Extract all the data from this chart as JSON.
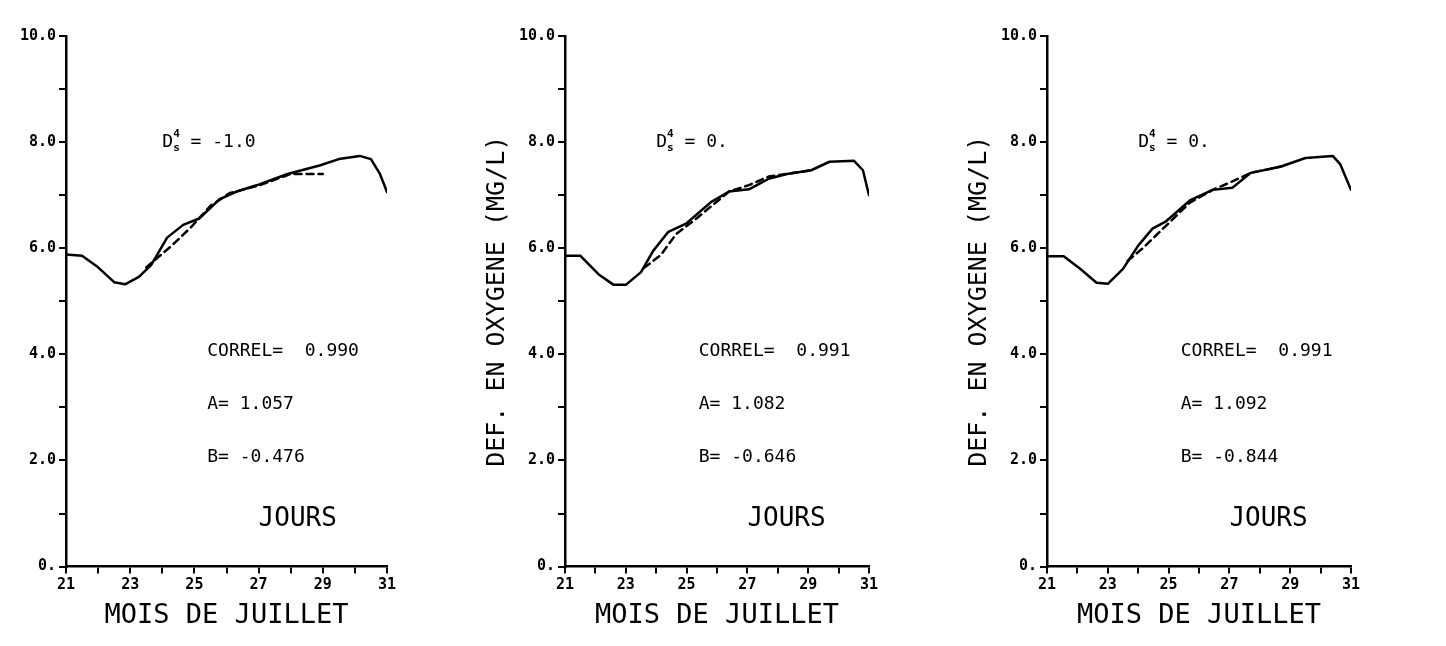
{
  "chart_data": [
    {
      "type": "line",
      "xlabel": "MOIS DE JUILLET",
      "xlim": [
        21,
        31
      ],
      "xticks": [
        21,
        {
          "value": 22,
          "label": null
        },
        23,
        {
          "value": 24,
          "label": null
        },
        25,
        {
          "value": 26,
          "label": null
        },
        27,
        {
          "value": 28,
          "label": null
        },
        29,
        {
          "value": 30,
          "label": null
        },
        31
      ],
      "ylim": [
        0,
        10
      ],
      "yticks": [
        {
          "value": 0,
          "label": "0."
        },
        {
          "value": 1,
          "label": null
        },
        {
          "value": 2,
          "label": "2.0"
        },
        {
          "value": 3,
          "label": null
        },
        {
          "value": 4,
          "label": "4.0"
        },
        {
          "value": 5,
          "label": null
        },
        {
          "value": 6,
          "label": "6.0"
        },
        {
          "value": 7,
          "label": null
        },
        {
          "value": 8,
          "label": "8.0"
        },
        {
          "value": 9,
          "label": null
        },
        {
          "value": 10,
          "label": "10.0"
        }
      ],
      "legend": false,
      "marker": "none",
      "annotations": [
        "D$^{4}$$_{s}$ = -1.0",
        "CORREL=  0.990",
        "A= 1.057",
        "B= -0.476",
        "JOURS"
      ],
      "series": [
        {
          "color": "#000000",
          "line_style": "solid",
          "x": [
            21,
            21.5,
            22.0,
            22.5,
            22.84,
            23.27,
            23.65,
            24.15,
            24.65,
            25.15,
            25.78,
            26.28,
            27.0,
            27.9,
            28.9,
            29.5,
            30.15,
            30.5,
            30.78,
            31.0
          ],
          "values": [
            5.88,
            5.86,
            5.64,
            5.36,
            5.32,
            5.46,
            5.68,
            6.2,
            6.44,
            6.56,
            6.92,
            7.06,
            7.2,
            7.4,
            7.56,
            7.68,
            7.74,
            7.68,
            7.4,
            7.06
          ]
        },
        {
          "color": "#000000",
          "line_style": "dashed",
          "x": [
            23.5,
            24.28,
            24.9,
            25.5,
            26.1,
            27.0,
            28.0,
            29.0
          ],
          "values": [
            5.64,
            6.04,
            6.4,
            6.8,
            7.04,
            7.18,
            7.4,
            7.4
          ]
        }
      ]
    },
    {
      "type": "line",
      "xlabel": "MOIS DE JUILLET",
      "ylabel": "DEF. EN OXYGENE (MG/L)",
      "xlim": [
        21,
        31
      ],
      "xticks": [
        21,
        {
          "value": 22,
          "label": null
        },
        23,
        {
          "value": 24,
          "label": null
        },
        25,
        {
          "value": 26,
          "label": null
        },
        27,
        {
          "value": 28,
          "label": null
        },
        29,
        {
          "value": 30,
          "label": null
        },
        31
      ],
      "ylim": [
        0,
        10
      ],
      "yticks": [
        {
          "value": 0,
          "label": "0."
        },
        {
          "value": 1,
          "label": null
        },
        {
          "value": 2,
          "label": "2.0"
        },
        {
          "value": 3,
          "label": null
        },
        {
          "value": 4,
          "label": "4.0"
        },
        {
          "value": 5,
          "label": null
        },
        {
          "value": 6,
          "label": "6.0"
        },
        {
          "value": 7,
          "label": null
        },
        {
          "value": 8,
          "label": "8.0"
        },
        {
          "value": 9,
          "label": null
        },
        {
          "value": 10,
          "label": "10.0"
        }
      ],
      "legend": false,
      "marker": "none",
      "annotations": [
        "D$^{4}$$_{s}$ = 0.",
        "CORREL=  0.991",
        "A= 1.082",
        "B= -0.646",
        "JOURS"
      ],
      "series": [
        {
          "color": "#000000",
          "line_style": "solid",
          "x": [
            21,
            21.5,
            22.1,
            22.6,
            23.0,
            23.5,
            23.9,
            24.4,
            25.0,
            25.8,
            26.4,
            27.05,
            27.7,
            28.3,
            29.1,
            29.7,
            30.5,
            30.8,
            31.0
          ],
          "values": [
            5.86,
            5.86,
            5.51,
            5.31,
            5.31,
            5.55,
            5.95,
            6.31,
            6.47,
            6.87,
            7.07,
            7.11,
            7.31,
            7.4,
            7.47,
            7.63,
            7.65,
            7.47,
            7.0
          ]
        },
        {
          "color": "#000000",
          "line_style": "dashed",
          "x": [
            23.6,
            24.15,
            24.66,
            25.3,
            26.4,
            27.05,
            27.7,
            29.1
          ],
          "values": [
            5.63,
            5.87,
            6.27,
            6.55,
            7.07,
            7.19,
            7.35,
            7.47
          ]
        }
      ]
    },
    {
      "type": "line",
      "xlabel": "MOIS DE JUILLET",
      "ylabel": "DEF. EN OXYGENE (MG/L)",
      "xlim": [
        21,
        31
      ],
      "xticks": [
        21,
        {
          "value": 22,
          "label": null
        },
        23,
        {
          "value": 24,
          "label": null
        },
        25,
        {
          "value": 26,
          "label": null
        },
        27,
        {
          "value": 28,
          "label": null
        },
        29,
        {
          "value": 30,
          "label": null
        },
        31
      ],
      "ylim": [
        0,
        10
      ],
      "yticks": [
        {
          "value": 0,
          "label": "0."
        },
        {
          "value": 1,
          "label": null
        },
        {
          "value": 2,
          "label": "2.0"
        },
        {
          "value": 3,
          "label": null
        },
        {
          "value": 4,
          "label": "4.0"
        },
        {
          "value": 5,
          "label": null
        },
        {
          "value": 6,
          "label": "6.0"
        },
        {
          "value": 7,
          "label": null
        },
        {
          "value": 8,
          "label": "8.0"
        },
        {
          "value": 9,
          "label": null
        },
        {
          "value": 10,
          "label": "10.0"
        }
      ],
      "legend": false,
      "marker": "none",
      "annotations": [
        "D$^{4}$$_{s}$ = 0.",
        "CORREL=  0.991",
        "A= 1.092",
        "B= -0.844",
        "JOURS"
      ],
      "series": [
        {
          "color": "#000000",
          "line_style": "solid",
          "x": [
            21,
            21.55,
            22.1,
            22.63,
            23.0,
            23.5,
            24.0,
            24.47,
            24.9,
            25.7,
            26.45,
            27.1,
            27.7,
            28.7,
            29.5,
            30.4,
            30.65,
            31.0
          ],
          "values": [
            5.85,
            5.85,
            5.61,
            5.35,
            5.33,
            5.61,
            6.05,
            6.37,
            6.5,
            6.9,
            7.1,
            7.14,
            7.42,
            7.54,
            7.7,
            7.74,
            7.58,
            7.1
          ]
        },
        {
          "color": "#000000",
          "line_style": "dashed",
          "x": [
            23.65,
            24.15,
            24.8,
            25.7,
            26.45,
            27.1,
            27.7,
            28.7
          ],
          "values": [
            5.76,
            6.0,
            6.36,
            6.86,
            7.1,
            7.26,
            7.42,
            7.54
          ]
        }
      ]
    }
  ]
}
